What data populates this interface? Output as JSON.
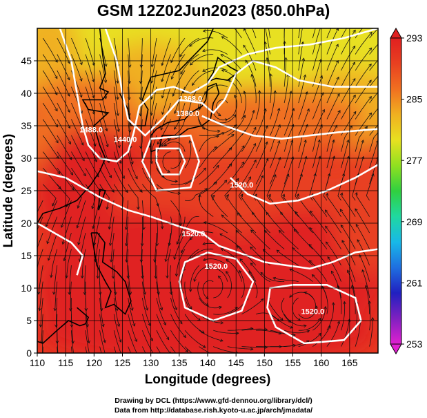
{
  "title": "GSM 12Z02Jun2023 (850.0hPa)",
  "credits": {
    "line1": "Drawing by DCL (https://www.gfd-dennou.org/library/dcl/)",
    "line2": "Data from http://database.rish.kyoto-u.ac.jp/arch/jmadata/"
  },
  "chart_data": {
    "type": "heatmap",
    "xlabel": "Longitude (degrees)",
    "ylabel": "Latitude  (degrees)",
    "xlim": [
      110,
      170
    ],
    "ylim": [
      0,
      50
    ],
    "x_ticks": [
      110,
      115,
      120,
      125,
      130,
      135,
      140,
      145,
      150,
      155,
      160,
      165
    ],
    "y_ticks": [
      0,
      5,
      10,
      15,
      20,
      25,
      30,
      35,
      40,
      45
    ],
    "grid": true,
    "colorbar": {
      "position": "right",
      "ticks": [
        253,
        261,
        269,
        277,
        285,
        293
      ],
      "min": 253,
      "max": 293,
      "colors": [
        "#e020d0",
        "#8020c0",
        "#2020c0",
        "#1f6fe0",
        "#18b8e8",
        "#20d8a0",
        "#30d040",
        "#90e020",
        "#e8e020",
        "#f0b020",
        "#f07020",
        "#e84020",
        "#e02020"
      ]
    },
    "contour_labels": [
      {
        "text": "1368.0",
        "lon": 137,
        "lat": 38.8
      },
      {
        "text": "1380.0",
        "lon": 136.5,
        "lat": 36.5
      },
      {
        "text": "1488.0",
        "lon": 119.5,
        "lat": 34
      },
      {
        "text": "1440.0",
        "lon": 125.5,
        "lat": 32.5
      },
      {
        "text": "1520.0",
        "lon": 146,
        "lat": 25.5
      },
      {
        "text": "1520.0",
        "lon": 137.5,
        "lat": 18
      },
      {
        "text": "1520.0",
        "lon": 141.5,
        "lat": 13
      },
      {
        "text": "1520.0",
        "lon": 158.5,
        "lat": 6
      }
    ]
  }
}
